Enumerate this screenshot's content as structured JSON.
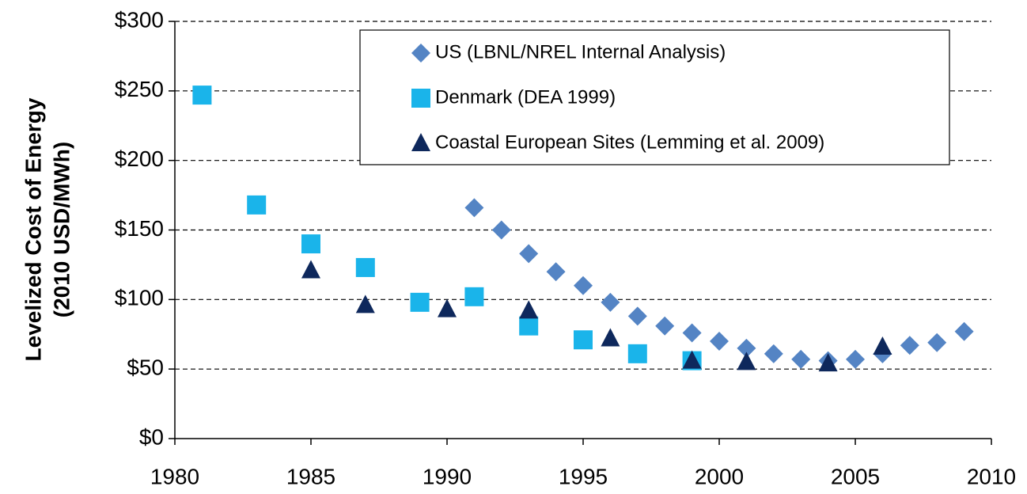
{
  "chart_data": {
    "type": "scatter",
    "ylabel": [
      "Levelized Cost of Energy",
      "(2010 USD/MWh)"
    ],
    "xlim": [
      1980,
      2010
    ],
    "xticks": [
      1980,
      1985,
      1990,
      1995,
      2000,
      2005,
      2010
    ],
    "ylim": [
      0,
      300
    ],
    "yticks": [
      {
        "value": 0,
        "label": "$0"
      },
      {
        "value": 50,
        "label": "$50"
      },
      {
        "value": 100,
        "label": "$100"
      },
      {
        "value": 150,
        "label": "$150"
      },
      {
        "value": 200,
        "label": "$200"
      },
      {
        "value": 250,
        "label": "$250"
      },
      {
        "value": 300,
        "label": "$300"
      }
    ],
    "grid": true,
    "legend": "upper right",
    "series": [
      {
        "name": "US (LBNL/NREL Internal Analysis)",
        "color": "#5484c4",
        "marker": "diamond",
        "x": [
          1991,
          1992,
          1993,
          1994,
          1995,
          1996,
          1997,
          1998,
          1999,
          2000,
          2001,
          2002,
          2003,
          2004,
          2005,
          2006,
          2007,
          2008,
          2009
        ],
        "values": [
          166,
          150,
          133,
          120,
          110,
          98,
          88,
          81,
          76,
          70,
          65,
          61,
          57,
          56,
          57,
          61,
          67,
          69,
          77
        ]
      },
      {
        "name": "Denmark (DEA 1999)",
        "color": "#1ab4ea",
        "marker": "square",
        "x": [
          1981,
          1983,
          1985,
          1987,
          1989,
          1991,
          1993,
          1995,
          1997,
          1999
        ],
        "values": [
          247,
          168,
          140,
          123,
          98,
          102,
          81,
          71,
          61,
          56
        ]
      },
      {
        "name": "Coastal European Sites (Lemming et al. 2009)",
        "color": "#0e285c",
        "marker": "triangle",
        "x": [
          1985,
          1987,
          1990,
          1993,
          1996,
          1999,
          2001,
          2004,
          2006
        ],
        "values": [
          121,
          96,
          93,
          92,
          72,
          56,
          55,
          54,
          66
        ]
      }
    ]
  }
}
